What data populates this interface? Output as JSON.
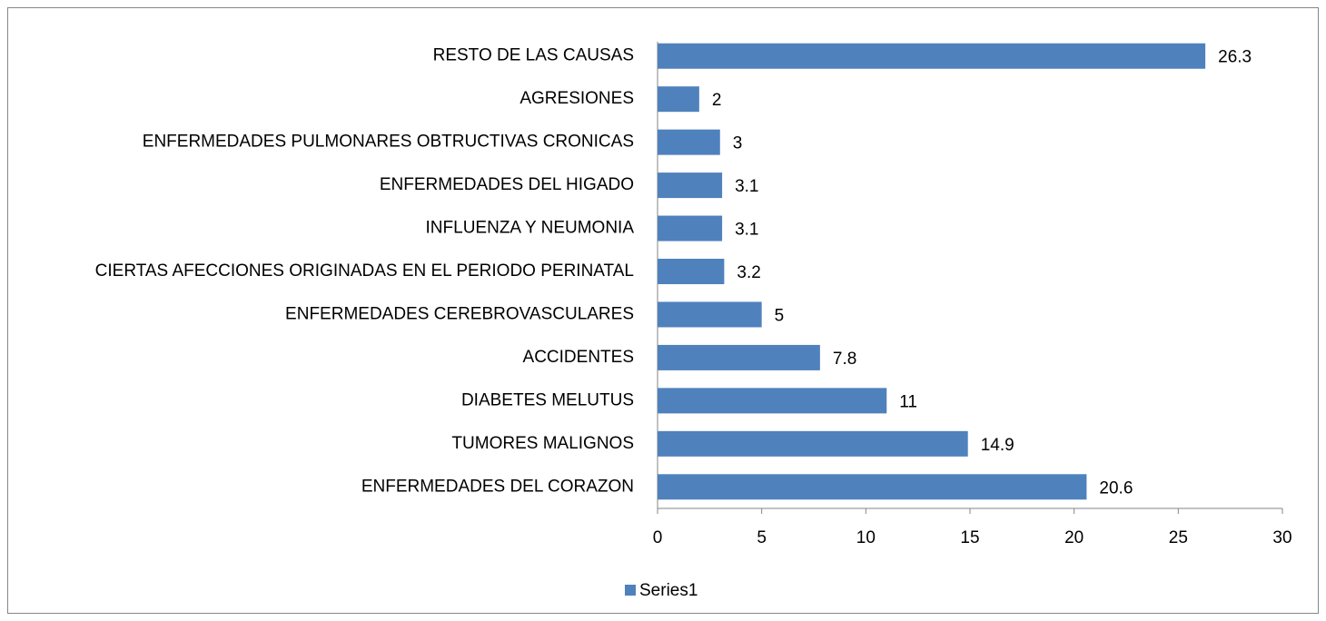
{
  "chart_data": {
    "type": "bar",
    "orientation": "horizontal",
    "categories": [
      "ENFERMEDADES DEL CORAZON",
      "TUMORES MALIGNOS",
      "DIABETES MELUTUS",
      "ACCIDENTES",
      "ENFERMEDADES CEREBROVASCULARES",
      "CIERTAS AFECCIONES ORIGINADAS EN EL PERIODO PERINATAL",
      "INFLUENZA Y NEUMONIA",
      "ENFERMEDADES DEL HIGADO",
      "ENFERMEDADES PULMONARES OBTRUCTIVAS CRONICAS",
      "AGRESIONES",
      "RESTO DE LAS CAUSAS"
    ],
    "series": [
      {
        "name": "Series1",
        "color": "#4f81bd",
        "values": [
          20.6,
          14.9,
          11,
          7.8,
          5,
          3.2,
          3.1,
          3.1,
          3,
          2,
          26.3
        ]
      }
    ],
    "xlim": [
      0,
      30
    ],
    "xticks": [
      0,
      5,
      10,
      15,
      20,
      25,
      30
    ],
    "grid": false,
    "legend": "bottom"
  }
}
